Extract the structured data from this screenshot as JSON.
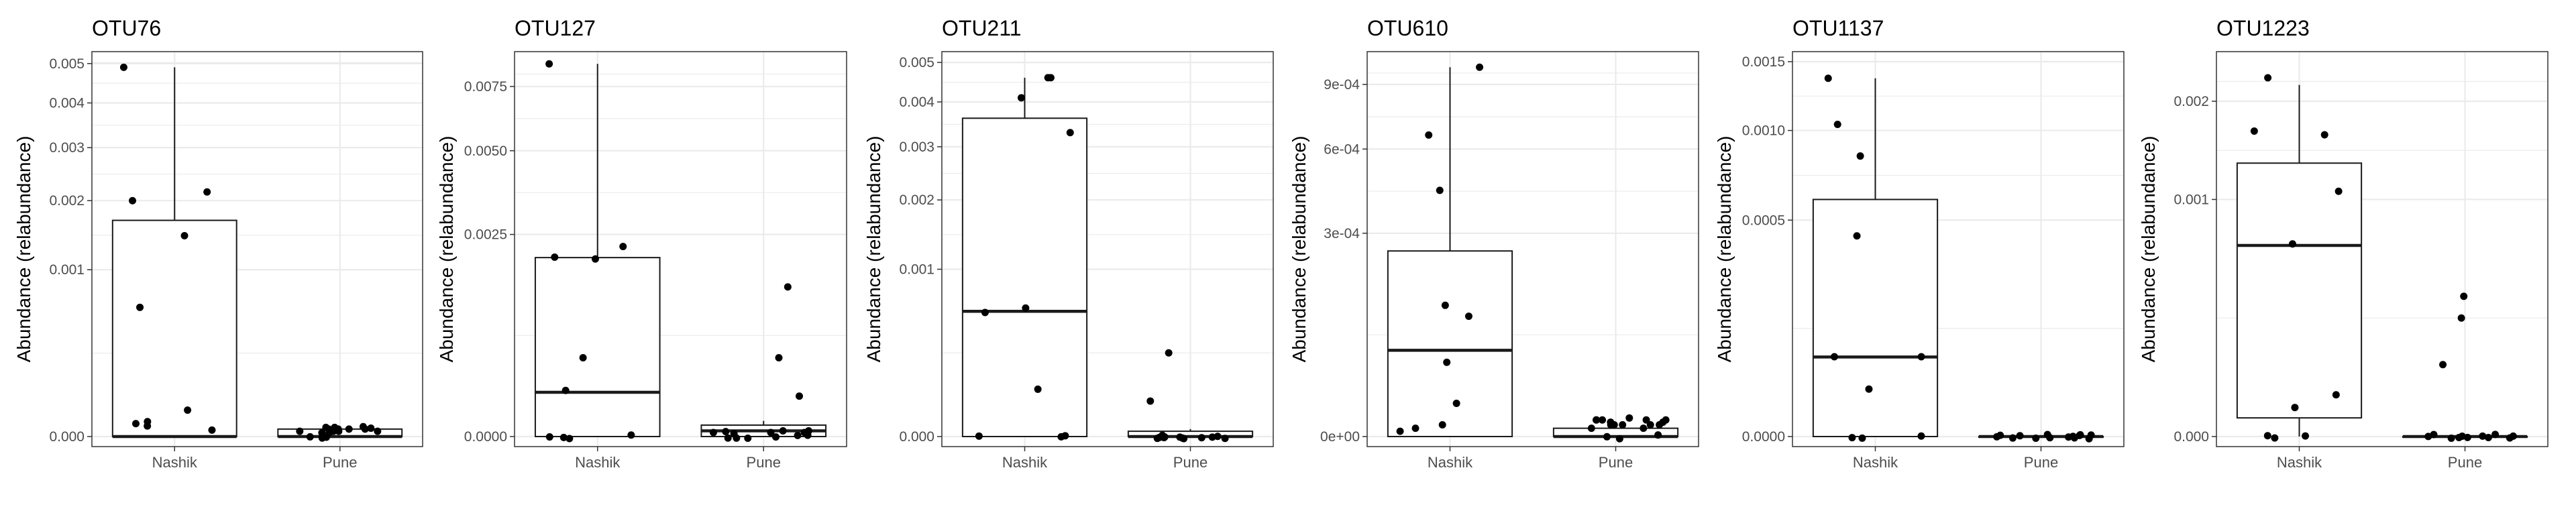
{
  "figure": {
    "background": "#ffffff",
    "grid_color": "#ebebeb",
    "panel_border_color": "#333333",
    "box_color": "#1a1a1a",
    "point_color": "#000000"
  },
  "chart_data": [
    {
      "type": "box",
      "title": "OTU76",
      "xlabel": "",
      "ylabel": "Abundance (relabundance)",
      "y_scale": "sqrt",
      "categories": [
        "Nashik",
        "Pune"
      ],
      "ylim": [
        0,
        0.00505
      ],
      "yticks": [
        0,
        0.001,
        0.002,
        0.003,
        0.004,
        0.005
      ],
      "ytick_labels": [
        "0.000",
        "0.001",
        "0.002",
        "0.003",
        "0.004",
        "0.005"
      ],
      "grid": true,
      "boxes": [
        {
          "category": "Nashik",
          "lower": 0,
          "q1": 0,
          "median": 0,
          "q3": 0.00168,
          "upper": 0.0049
        },
        {
          "category": "Pune",
          "lower": 0,
          "q1": 0,
          "median": 0,
          "q3": 2e-06,
          "upper": 3e-06
        }
      ],
      "points": [
        {
          "category": "Nashik",
          "values": [
            0.0049,
            0.00215,
            0.002,
            0.00145,
            0.0006,
            2.5e-05,
            1.5e-06,
            4e-06,
            6e-06,
            8e-06
          ]
        },
        {
          "category": "Pune",
          "values": [
            0,
            1e-06,
            2e-06,
            5e-07,
            3e-06,
            0,
            1e-06,
            2.5e-06,
            2e-06,
            1.5e-06,
            1e-06,
            0,
            2e-06,
            3.5e-06,
            1e-06,
            5e-07,
            2e-06,
            3e-06
          ]
        }
      ]
    },
    {
      "type": "box",
      "title": "OTU127",
      "xlabel": "",
      "ylabel": "Abundance (relabundance)",
      "y_scale": "sqrt",
      "categories": [
        "Nashik",
        "Pune"
      ],
      "ylim": [
        0,
        0.0086
      ],
      "yticks": [
        0,
        0.0025,
        0.005,
        0.0075
      ],
      "ytick_labels": [
        "0.0000",
        "0.0025",
        "0.0050",
        "0.0075"
      ],
      "grid": true,
      "boxes": [
        {
          "category": "Nashik",
          "lower": 0,
          "q1": 0,
          "median": 0.00012,
          "q3": 0.00196,
          "upper": 0.0085
        },
        {
          "category": "Pune",
          "lower": 0,
          "q1": 0,
          "median": 2e-06,
          "q3": 8e-06,
          "upper": 1.5e-05
        }
      ],
      "points": [
        {
          "category": "Nashik",
          "values": [
            0.0085,
            0.00221,
            0.00197,
            0.00193,
            0.00038,
            0.00013,
            0,
            0,
            0,
            0
          ]
        },
        {
          "category": "Pune",
          "values": [
            0.00137,
            0.00038,
            0.0001,
            0,
            1e-06,
            0,
            2e-06,
            5e-07,
            0,
            1e-06,
            0,
            1.5e-06,
            0,
            1e-06,
            0,
            2e-06
          ]
        }
      ]
    },
    {
      "type": "box",
      "title": "OTU211",
      "xlabel": "",
      "ylabel": "Abundance (relabundance)",
      "y_scale": "sqrt",
      "categories": [
        "Nashik",
        "Pune"
      ],
      "ylim": [
        0,
        0.00502
      ],
      "yticks": [
        0,
        0.001,
        0.002,
        0.003,
        0.004,
        0.005
      ],
      "ytick_labels": [
        "0.000",
        "0.001",
        "0.002",
        "0.003",
        "0.004",
        "0.005"
      ],
      "grid": true,
      "boxes": [
        {
          "category": "Nashik",
          "lower": 0,
          "q1": 0,
          "median": 0.00056,
          "q3": 0.00362,
          "upper": 0.0046
        },
        {
          "category": "Pune",
          "lower": 0,
          "q1": 0,
          "median": 0,
          "q3": 1e-06,
          "upper": 2e-06
        }
      ],
      "points": [
        {
          "category": "Nashik",
          "values": [
            0.0046,
            0.0046,
            0.0041,
            0.0033,
            0.00059,
            0.00055,
            8e-05,
            0,
            0,
            0
          ]
        },
        {
          "category": "Pune",
          "values": [
            0.00025,
            4.5e-05,
            0,
            0,
            0,
            0,
            0,
            0,
            0,
            0,
            0,
            0,
            0,
            0
          ]
        }
      ]
    },
    {
      "type": "box",
      "title": "OTU610",
      "xlabel": "",
      "ylabel": "Abundance (relabundance)",
      "y_scale": "sqrt",
      "categories": [
        "Nashik",
        "Pune"
      ],
      "ylim": [
        0,
        0.00102
      ],
      "yticks": [
        0,
        0.0003,
        0.0006,
        0.0009
      ],
      "ytick_labels": [
        "0e+00",
        "3e-04",
        "6e-04",
        "9e-04"
      ],
      "grid": true,
      "boxes": [
        {
          "category": "Nashik",
          "lower": 0,
          "q1": 0,
          "median": 5.4e-05,
          "q3": 0.00025,
          "upper": 0.00099
        },
        {
          "category": "Pune",
          "lower": 0,
          "q1": 0,
          "median": 0,
          "q3": 5e-07,
          "upper": 1e-06
        }
      ],
      "points": [
        {
          "category": "Nashik",
          "values": [
            0.00099,
            0.00066,
            0.00044,
            0.000125,
            0.000105,
            4e-05,
            8e-06,
            5e-07,
            2e-07,
            1e-06
          ]
        },
        {
          "category": "Pune",
          "values": [
            2e-06,
            2.5e-06,
            1e-06,
            0,
            1.5e-06,
            2e-06,
            1e-06,
            5e-07,
            2e-06,
            0,
            1e-06,
            1.5e-06,
            2e-06,
            1e-06,
            0,
            5e-07,
            2e-06,
            1e-06
          ]
        }
      ]
    },
    {
      "type": "box",
      "title": "OTU1137",
      "xlabel": "",
      "ylabel": "Abundance (relabundance)",
      "y_scale": "sqrt",
      "categories": [
        "Nashik",
        "Pune"
      ],
      "ylim": [
        0,
        0.0015
      ],
      "yticks": [
        0,
        0.0005,
        0.001,
        0.0015
      ],
      "ytick_labels": [
        "0.0000",
        "0.0005",
        "0.0010",
        "0.0015"
      ],
      "grid": true,
      "boxes": [
        {
          "category": "Nashik",
          "lower": 0,
          "q1": 0,
          "median": 6.75e-05,
          "q3": 0.0006,
          "upper": 0.00137
        },
        {
          "category": "Pune",
          "lower": 0,
          "q1": 0,
          "median": 0,
          "q3": 0,
          "upper": 0
        }
      ],
      "points": [
        {
          "category": "Nashik",
          "values": [
            0.00137,
            0.00104,
            0.00084,
            0.00043,
            6.8e-05,
            6.8e-05,
            2.4e-05,
            0,
            0,
            0
          ]
        },
        {
          "category": "Pune",
          "values": [
            0,
            0,
            0,
            0,
            0,
            0,
            0,
            0,
            0,
            0,
            0,
            0,
            0,
            0
          ]
        }
      ]
    },
    {
      "type": "box",
      "title": "OTU1223",
      "xlabel": "",
      "ylabel": "Abundance (relabundance)",
      "y_scale": "sqrt",
      "categories": [
        "Nashik",
        "Pune"
      ],
      "ylim": [
        0,
        0.0025
      ],
      "yticks": [
        0,
        0.001,
        0.002
      ],
      "ytick_labels": [
        "0.000",
        "0.001",
        "0.002"
      ],
      "grid": true,
      "boxes": [
        {
          "category": "Nashik",
          "lower": 0,
          "q1": 6.2e-06,
          "median": 0.00065,
          "q3": 0.00133,
          "upper": 0.0022
        },
        {
          "category": "Pune",
          "lower": 0,
          "q1": 0,
          "median": 0,
          "q3": 0,
          "upper": 0
        }
      ],
      "points": [
        {
          "category": "Nashik",
          "values": [
            0.00229,
            0.00166,
            0.00162,
            0.00107,
            0.00066,
            3.1e-05,
            1.5e-05,
            0,
            0,
            0
          ]
        },
        {
          "category": "Pune",
          "values": [
            0.00035,
            0.00025,
            9.2e-05,
            0,
            0,
            0,
            0,
            0,
            0,
            0,
            0,
            0,
            0,
            0
          ]
        }
      ]
    }
  ]
}
